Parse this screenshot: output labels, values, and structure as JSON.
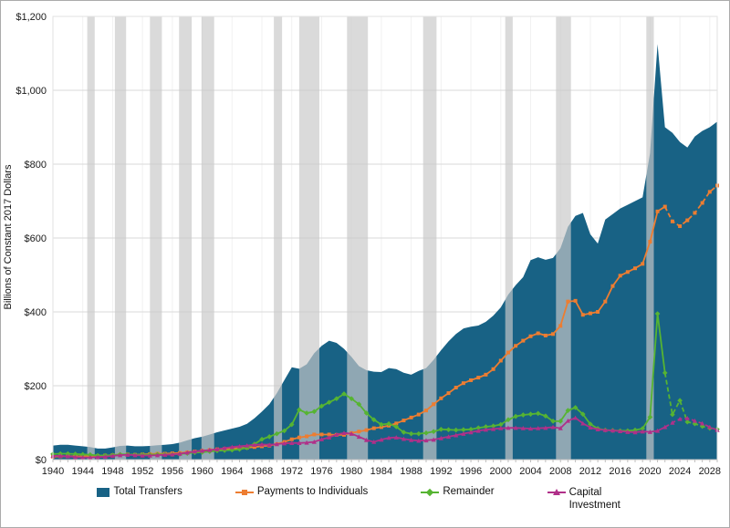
{
  "figure": {
    "background": "#ffffff",
    "border_color": "#ababab",
    "plot_border_color": "#e2e2e2",
    "axis_line_color": "#bfbfbf",
    "gridline_color": "#d9d9d9",
    "vgridline_color": "#f1f1f1",
    "tick_label_color": "#1a1a1a"
  },
  "chart_data": {
    "type": "area",
    "title": "",
    "xlabel": "",
    "ylabel": "Billions of Constant 2017 Dollars",
    "ylim": [
      0,
      1200
    ],
    "ytick_step": 200,
    "ytick_labels": [
      "$0",
      "$200",
      "$400",
      "$600",
      "$800",
      "$1,000",
      "$1,200"
    ],
    "x_range": [
      1940,
      2029
    ],
    "xticks": [
      1940,
      1944,
      1948,
      1952,
      1956,
      1960,
      1964,
      1968,
      1972,
      1976,
      1980,
      1984,
      1988,
      1992,
      1996,
      2000,
      2004,
      2008,
      2012,
      2016,
      2020,
      2024,
      2028
    ],
    "grid": "horizontal light gray, faint vertical at 4-year ticks",
    "legend_position": "bottom",
    "projection_start_year": 2022,
    "recession_band_color": "#c8c8c8",
    "recession_bands": [
      [
        1944.6,
        1945.6
      ],
      [
        1948.3,
        1949.8
      ],
      [
        1953.0,
        1954.6
      ],
      [
        1956.9,
        1958.6
      ],
      [
        1959.9,
        1961.6
      ],
      [
        1969.6,
        1970.7
      ],
      [
        1973.0,
        1975.7
      ],
      [
        1979.4,
        1982.2
      ],
      [
        1989.6,
        1991.4
      ],
      [
        2000.6,
        2001.6
      ],
      [
        2007.4,
        2009.4
      ],
      [
        2019.5,
        2020.5
      ]
    ],
    "years": [
      1940,
      1941,
      1942,
      1943,
      1944,
      1945,
      1946,
      1947,
      1948,
      1949,
      1950,
      1951,
      1952,
      1953,
      1954,
      1955,
      1956,
      1957,
      1958,
      1959,
      1960,
      1961,
      1962,
      1963,
      1964,
      1965,
      1966,
      1967,
      1968,
      1969,
      1970,
      1971,
      1972,
      1973,
      1974,
      1975,
      1976,
      1977,
      1978,
      1979,
      1980,
      1981,
      1982,
      1983,
      1984,
      1985,
      1986,
      1987,
      1988,
      1989,
      1990,
      1991,
      1992,
      1993,
      1994,
      1995,
      1996,
      1997,
      1998,
      1999,
      2000,
      2001,
      2002,
      2003,
      2004,
      2005,
      2006,
      2007,
      2008,
      2009,
      2010,
      2011,
      2012,
      2013,
      2014,
      2015,
      2016,
      2017,
      2018,
      2019,
      2020,
      2021,
      2022,
      2023,
      2024,
      2025,
      2026,
      2027,
      2028,
      2029
    ],
    "series": [
      {
        "name": "Total Transfers",
        "type": "area",
        "color": "#186285",
        "values": [
          38,
          40,
          40,
          38,
          36,
          34,
          30,
          30,
          33,
          37,
          38,
          36,
          36,
          37,
          39,
          40,
          42,
          46,
          52,
          58,
          62,
          68,
          74,
          79,
          84,
          89,
          97,
          112,
          130,
          150,
          180,
          215,
          250,
          246,
          258,
          288,
          308,
          322,
          316,
          300,
          278,
          253,
          242,
          238,
          237,
          248,
          245,
          235,
          230,
          240,
          248,
          270,
          296,
          320,
          340,
          355,
          360,
          363,
          373,
          390,
          412,
          447,
          472,
          494,
          540,
          548,
          541,
          546,
          572,
          630,
          660,
          668,
          610,
          585,
          650,
          665,
          680,
          690,
          700,
          710,
          830,
          1125,
          900,
          885,
          860,
          845,
          875,
          890,
          900,
          915
        ]
      },
      {
        "name": "Payments to Individuals",
        "type": "line",
        "color": "#ED7D31",
        "marker": "square",
        "values": [
          8,
          9,
          9,
          9,
          9,
          10,
          10,
          11,
          12,
          13,
          14,
          13,
          14,
          15,
          16,
          16,
          17,
          18,
          20,
          22,
          24,
          26,
          28,
          29,
          30,
          31,
          32,
          34,
          36,
          38,
          42,
          48,
          55,
          60,
          63,
          68,
          68,
          68,
          67,
          67,
          72,
          76,
          80,
          85,
          88,
          92,
          98,
          106,
          114,
          122,
          133,
          150,
          166,
          180,
          195,
          207,
          215,
          222,
          230,
          245,
          268,
          290,
          308,
          322,
          334,
          342,
          336,
          340,
          362,
          428,
          430,
          392,
          396,
          400,
          428,
          470,
          498,
          508,
          518,
          530,
          590,
          672,
          685,
          645,
          632,
          648,
          668,
          695,
          725,
          742
        ]
      },
      {
        "name": "Remainder",
        "type": "line",
        "color": "#56B432",
        "marker": "diamond",
        "values": [
          15,
          16,
          16,
          15,
          14,
          13,
          11,
          11,
          12,
          14,
          14,
          13,
          13,
          13,
          14,
          14,
          14,
          15,
          17,
          19,
          20,
          22,
          24,
          25,
          26,
          28,
          32,
          42,
          55,
          62,
          70,
          78,
          95,
          135,
          126,
          130,
          145,
          155,
          165,
          178,
          165,
          150,
          126,
          108,
          95,
          97,
          89,
          74,
          70,
          70,
          72,
          76,
          82,
          81,
          80,
          81,
          82,
          86,
          89,
          91,
          95,
          108,
          117,
          121,
          123,
          125,
          118,
          104,
          104,
          133,
          141,
          123,
          96,
          84,
          80,
          79,
          78,
          78,
          80,
          84,
          115,
          395,
          235,
          122,
          160,
          102,
          97,
          90,
          85,
          82
        ]
      },
      {
        "name": "Capital Investment",
        "type": "line",
        "color": "#B03089",
        "marker": "triangle",
        "values": [
          10,
          10,
          9,
          7,
          6,
          6,
          7,
          8,
          10,
          12,
          13,
          12,
          11,
          11,
          12,
          13,
          14,
          16,
          19,
          22,
          24,
          26,
          28,
          31,
          34,
          36,
          38,
          40,
          41,
          40,
          42,
          44,
          45,
          45,
          46,
          48,
          55,
          60,
          68,
          72,
          70,
          62,
          53,
          48,
          54,
          59,
          60,
          56,
          53,
          51,
          52,
          54,
          58,
          62,
          66,
          70,
          74,
          78,
          81,
          83,
          85,
          86,
          86,
          85,
          84,
          85,
          86,
          88,
          85,
          105,
          113,
          98,
          87,
          82,
          80,
          79,
          77,
          75,
          74,
          76,
          75,
          78,
          88,
          100,
          110,
          112,
          105,
          98,
          88,
          80
        ]
      }
    ]
  },
  "legend": {
    "items": [
      {
        "label": "Total Transfers"
      },
      {
        "label": "Payments to Individuals"
      },
      {
        "label": "Remainder"
      },
      {
        "label": "Capital Investment"
      }
    ]
  }
}
